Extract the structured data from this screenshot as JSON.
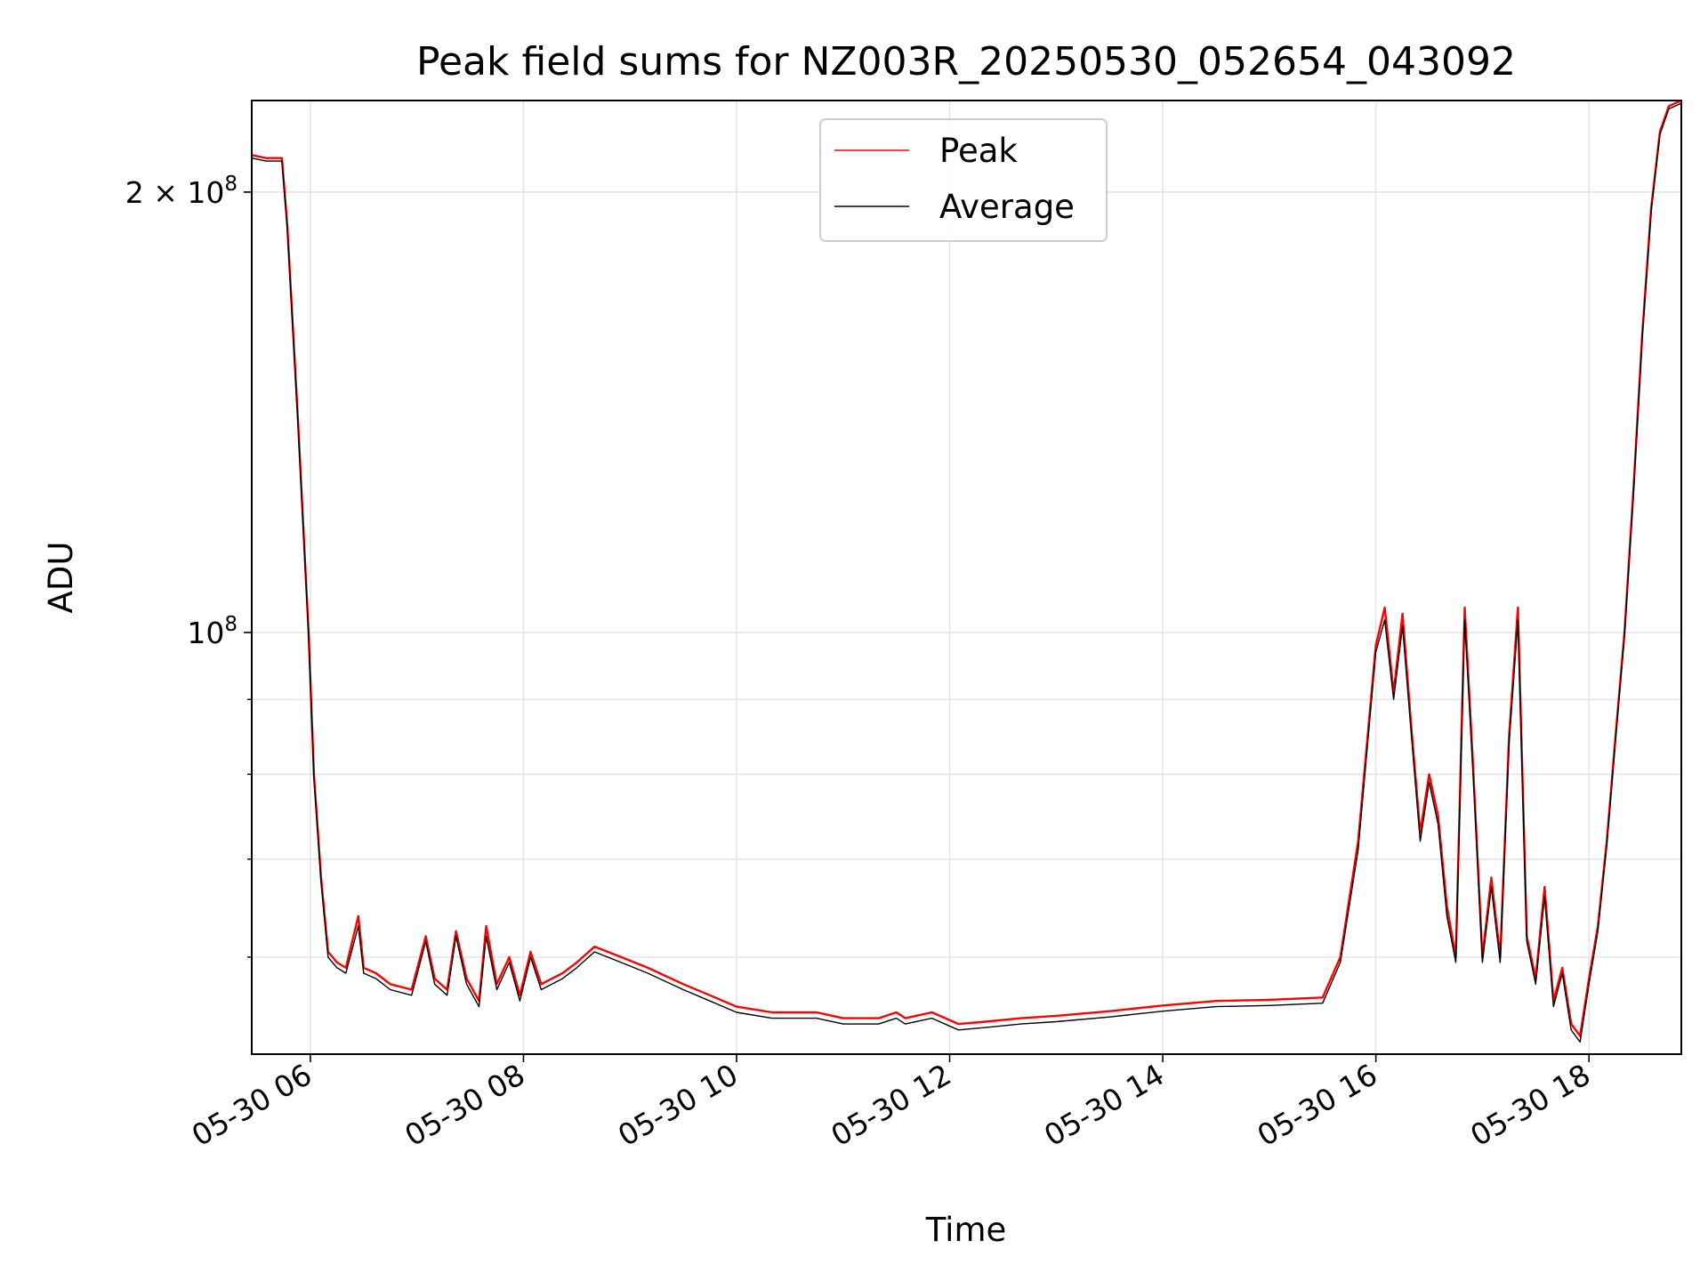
{
  "chart_data": {
    "type": "line",
    "title": "Peak field sums for NZ003R_20250530_052654_043092",
    "xlabel": "Time",
    "ylabel": "ADU",
    "xlim": [
      "2025-05-30 05:27",
      "2025-05-30 18:52"
    ],
    "ylim": [
      51500000,
      231000000
    ],
    "yscale": "log",
    "grid": true,
    "legend": "upper center",
    "x_ticks": [
      "05-30 06",
      "05-30 08",
      "05-30 10",
      "05-30 12",
      "05-30 14",
      "05-30 16",
      "05-30 18"
    ],
    "y_ticks": [
      {
        "value": 100000000,
        "base": "10",
        "exp": "8",
        "mult": ""
      },
      {
        "value": 200000000,
        "base": "10",
        "exp": "8",
        "mult": "2 × "
      }
    ],
    "y_minor_ticks": [
      60000000,
      70000000,
      80000000,
      90000000
    ],
    "series": [
      {
        "name": "Peak",
        "color": "#ff0000",
        "x": [
          "05:27",
          "05:35",
          "05:44",
          "05:47",
          "05:53",
          "05:59",
          "06:02",
          "06:06",
          "06:10",
          "06:15",
          "06:20",
          "06:27",
          "06:30",
          "06:37",
          "06:45",
          "06:57",
          "07:05",
          "07:10",
          "07:17",
          "07:22",
          "07:28",
          "07:35",
          "07:39",
          "07:45",
          "07:52",
          "07:58",
          "08:04",
          "08:10",
          "08:16",
          "08:22",
          "08:30",
          "08:40",
          "08:55",
          "09:10",
          "09:30",
          "09:45",
          "10:00",
          "10:20",
          "10:45",
          "11:00",
          "11:20",
          "11:30",
          "11:35",
          "11:50",
          "12:05",
          "12:20",
          "12:40",
          "13:00",
          "13:30",
          "14:00",
          "14:30",
          "15:00",
          "15:30",
          "15:40",
          "15:50",
          "16:00",
          "16:05",
          "16:10",
          "16:15",
          "16:20",
          "16:25",
          "16:30",
          "16:35",
          "16:40",
          "16:45",
          "16:50",
          "16:55",
          "17:00",
          "17:05",
          "17:10",
          "17:15",
          "17:20",
          "17:25",
          "17:30",
          "17:35",
          "17:40",
          "17:45",
          "17:50",
          "17:55",
          "18:00",
          "18:05",
          "18:10",
          "18:15",
          "18:20",
          "18:25",
          "18:30",
          "18:35",
          "18:40",
          "18:45",
          "18:52"
        ],
        "y": [
          212000000,
          211000000,
          211000000,
          190000000,
          140000000,
          100000000,
          80000000,
          68000000,
          60500000,
          59500000,
          59000000,
          64000000,
          59000000,
          58500000,
          57500000,
          57000000,
          62000000,
          58000000,
          57000000,
          62500000,
          58000000,
          56000000,
          63000000,
          57500000,
          60000000,
          56500000,
          60500000,
          57500000,
          58000000,
          58500000,
          59500000,
          61000000,
          60000000,
          59000000,
          57500000,
          56500000,
          55500000,
          55000000,
          55000000,
          54500000,
          54500000,
          55000000,
          54500000,
          55000000,
          54000000,
          54200000,
          54500000,
          54700000,
          55100000,
          55600000,
          56000000,
          56100000,
          56300000,
          60000000,
          72000000,
          98000000,
          104000000,
          91000000,
          103000000,
          86000000,
          73000000,
          80000000,
          75000000,
          65000000,
          60000000,
          104000000,
          80000000,
          60000000,
          68000000,
          60000000,
          85000000,
          104000000,
          62000000,
          58000000,
          67000000,
          56000000,
          59000000,
          54000000,
          53000000,
          58000000,
          63000000,
          72000000,
          85000000,
          100000000,
          125000000,
          160000000,
          195000000,
          220000000,
          229000000,
          231000000
        ]
      },
      {
        "name": "Average",
        "color": "#000000",
        "x": [
          "05:27",
          "05:35",
          "05:44",
          "05:47",
          "05:53",
          "05:59",
          "06:02",
          "06:06",
          "06:10",
          "06:15",
          "06:20",
          "06:27",
          "06:30",
          "06:37",
          "06:45",
          "06:57",
          "07:05",
          "07:10",
          "07:17",
          "07:22",
          "07:28",
          "07:35",
          "07:39",
          "07:45",
          "07:52",
          "07:58",
          "08:04",
          "08:10",
          "08:16",
          "08:22",
          "08:30",
          "08:40",
          "08:55",
          "09:10",
          "09:30",
          "09:45",
          "10:00",
          "10:20",
          "10:45",
          "11:00",
          "11:20",
          "11:30",
          "11:35",
          "11:50",
          "12:05",
          "12:20",
          "12:40",
          "13:00",
          "13:30",
          "14:00",
          "14:30",
          "15:00",
          "15:30",
          "15:40",
          "15:50",
          "16:00",
          "16:05",
          "16:10",
          "16:15",
          "16:20",
          "16:25",
          "16:30",
          "16:35",
          "16:40",
          "16:45",
          "16:50",
          "16:55",
          "17:00",
          "17:05",
          "17:10",
          "17:15",
          "17:20",
          "17:25",
          "17:30",
          "17:35",
          "17:40",
          "17:45",
          "17:50",
          "17:55",
          "18:00",
          "18:05",
          "18:10",
          "18:15",
          "18:20",
          "18:25",
          "18:30",
          "18:35",
          "18:40",
          "18:45",
          "18:52"
        ],
        "y": [
          211000000,
          210000000,
          210000000,
          189000000,
          139000000,
          99500000,
          79500000,
          67500000,
          60000000,
          59000000,
          58500000,
          63000000,
          58500000,
          58000000,
          57000000,
          56500000,
          61500000,
          57500000,
          56500000,
          62000000,
          57500000,
          55500000,
          62000000,
          57000000,
          59500000,
          56000000,
          60000000,
          57000000,
          57500000,
          58000000,
          59000000,
          60500000,
          59500000,
          58500000,
          57000000,
          56000000,
          55000000,
          54500000,
          54500000,
          54000000,
          54000000,
          54500000,
          54000000,
          54500000,
          53500000,
          53700000,
          54000000,
          54200000,
          54600000,
          55100000,
          55500000,
          55600000,
          55800000,
          59500000,
          71000000,
          97000000,
          102000000,
          90000000,
          101000000,
          85000000,
          72000000,
          79000000,
          74000000,
          64000000,
          59500000,
          102000000,
          79000000,
          59500000,
          67000000,
          59500000,
          84000000,
          102000000,
          61500000,
          57500000,
          66000000,
          55500000,
          58500000,
          53500000,
          52500000,
          57500000,
          62500000,
          71500000,
          84500000,
          99500000,
          124000000,
          159000000,
          194000000,
          219000000,
          228000000,
          230000000
        ]
      }
    ]
  }
}
